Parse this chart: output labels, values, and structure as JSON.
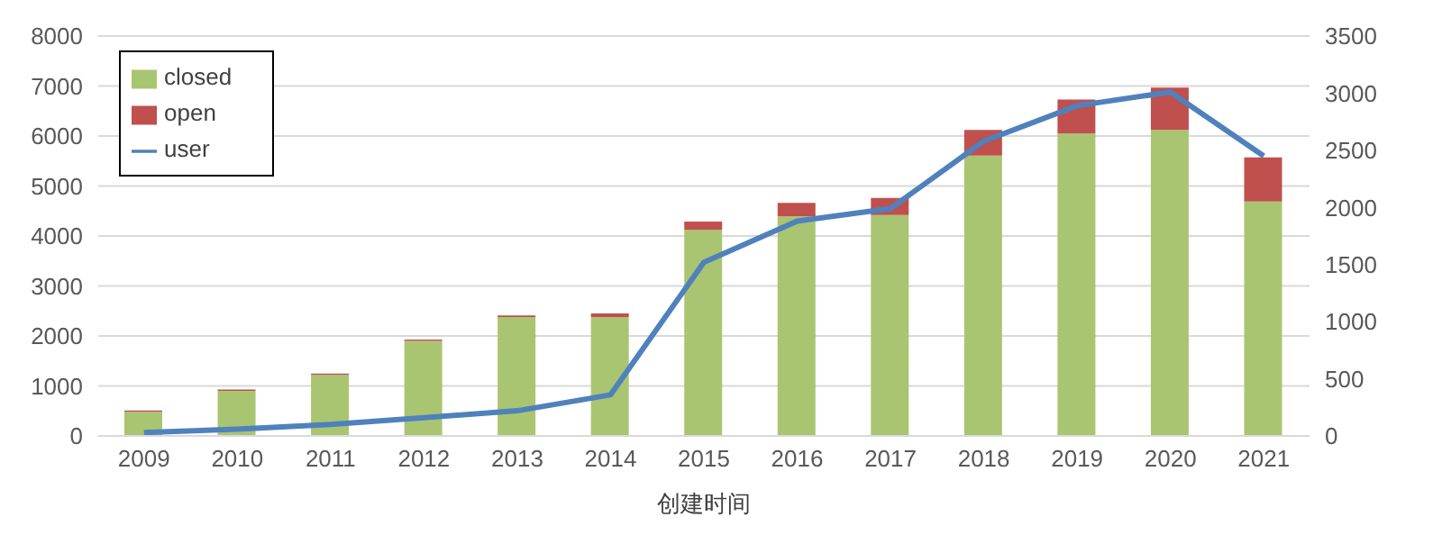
{
  "chart_data": {
    "type": "bar",
    "stacked": true,
    "xlabel": "创建时间",
    "categories": [
      "2009",
      "2010",
      "2011",
      "2012",
      "2013",
      "2014",
      "2015",
      "2016",
      "2017",
      "2018",
      "2019",
      "2020",
      "2021"
    ],
    "series": [
      {
        "name": "closed",
        "color": "#a9c571",
        "values": [
          480,
          900,
          1220,
          1900,
          2380,
          2380,
          4120,
          4390,
          4420,
          5610,
          6050,
          6120,
          4690
        ]
      },
      {
        "name": "open",
        "color": "#c0504d",
        "values": [
          30,
          30,
          30,
          30,
          30,
          70,
          170,
          270,
          340,
          510,
          680,
          850,
          880
        ]
      },
      {
        "name": "user",
        "type": "line",
        "axis": "y2",
        "color": "#4f81bd",
        "values": [
          30,
          60,
          100,
          160,
          220,
          360,
          1520,
          1880,
          1990,
          2580,
          2890,
          3010,
          2450
        ]
      }
    ],
    "ylim": [
      0,
      8000
    ],
    "yticks": [
      0,
      1000,
      2000,
      3000,
      4000,
      5000,
      6000,
      7000,
      8000
    ],
    "y2lim": [
      0,
      3500
    ],
    "y2ticks": [
      0,
      500,
      1000,
      1500,
      2000,
      2500,
      3000,
      3500
    ],
    "grid": "y",
    "legend": "top left"
  }
}
